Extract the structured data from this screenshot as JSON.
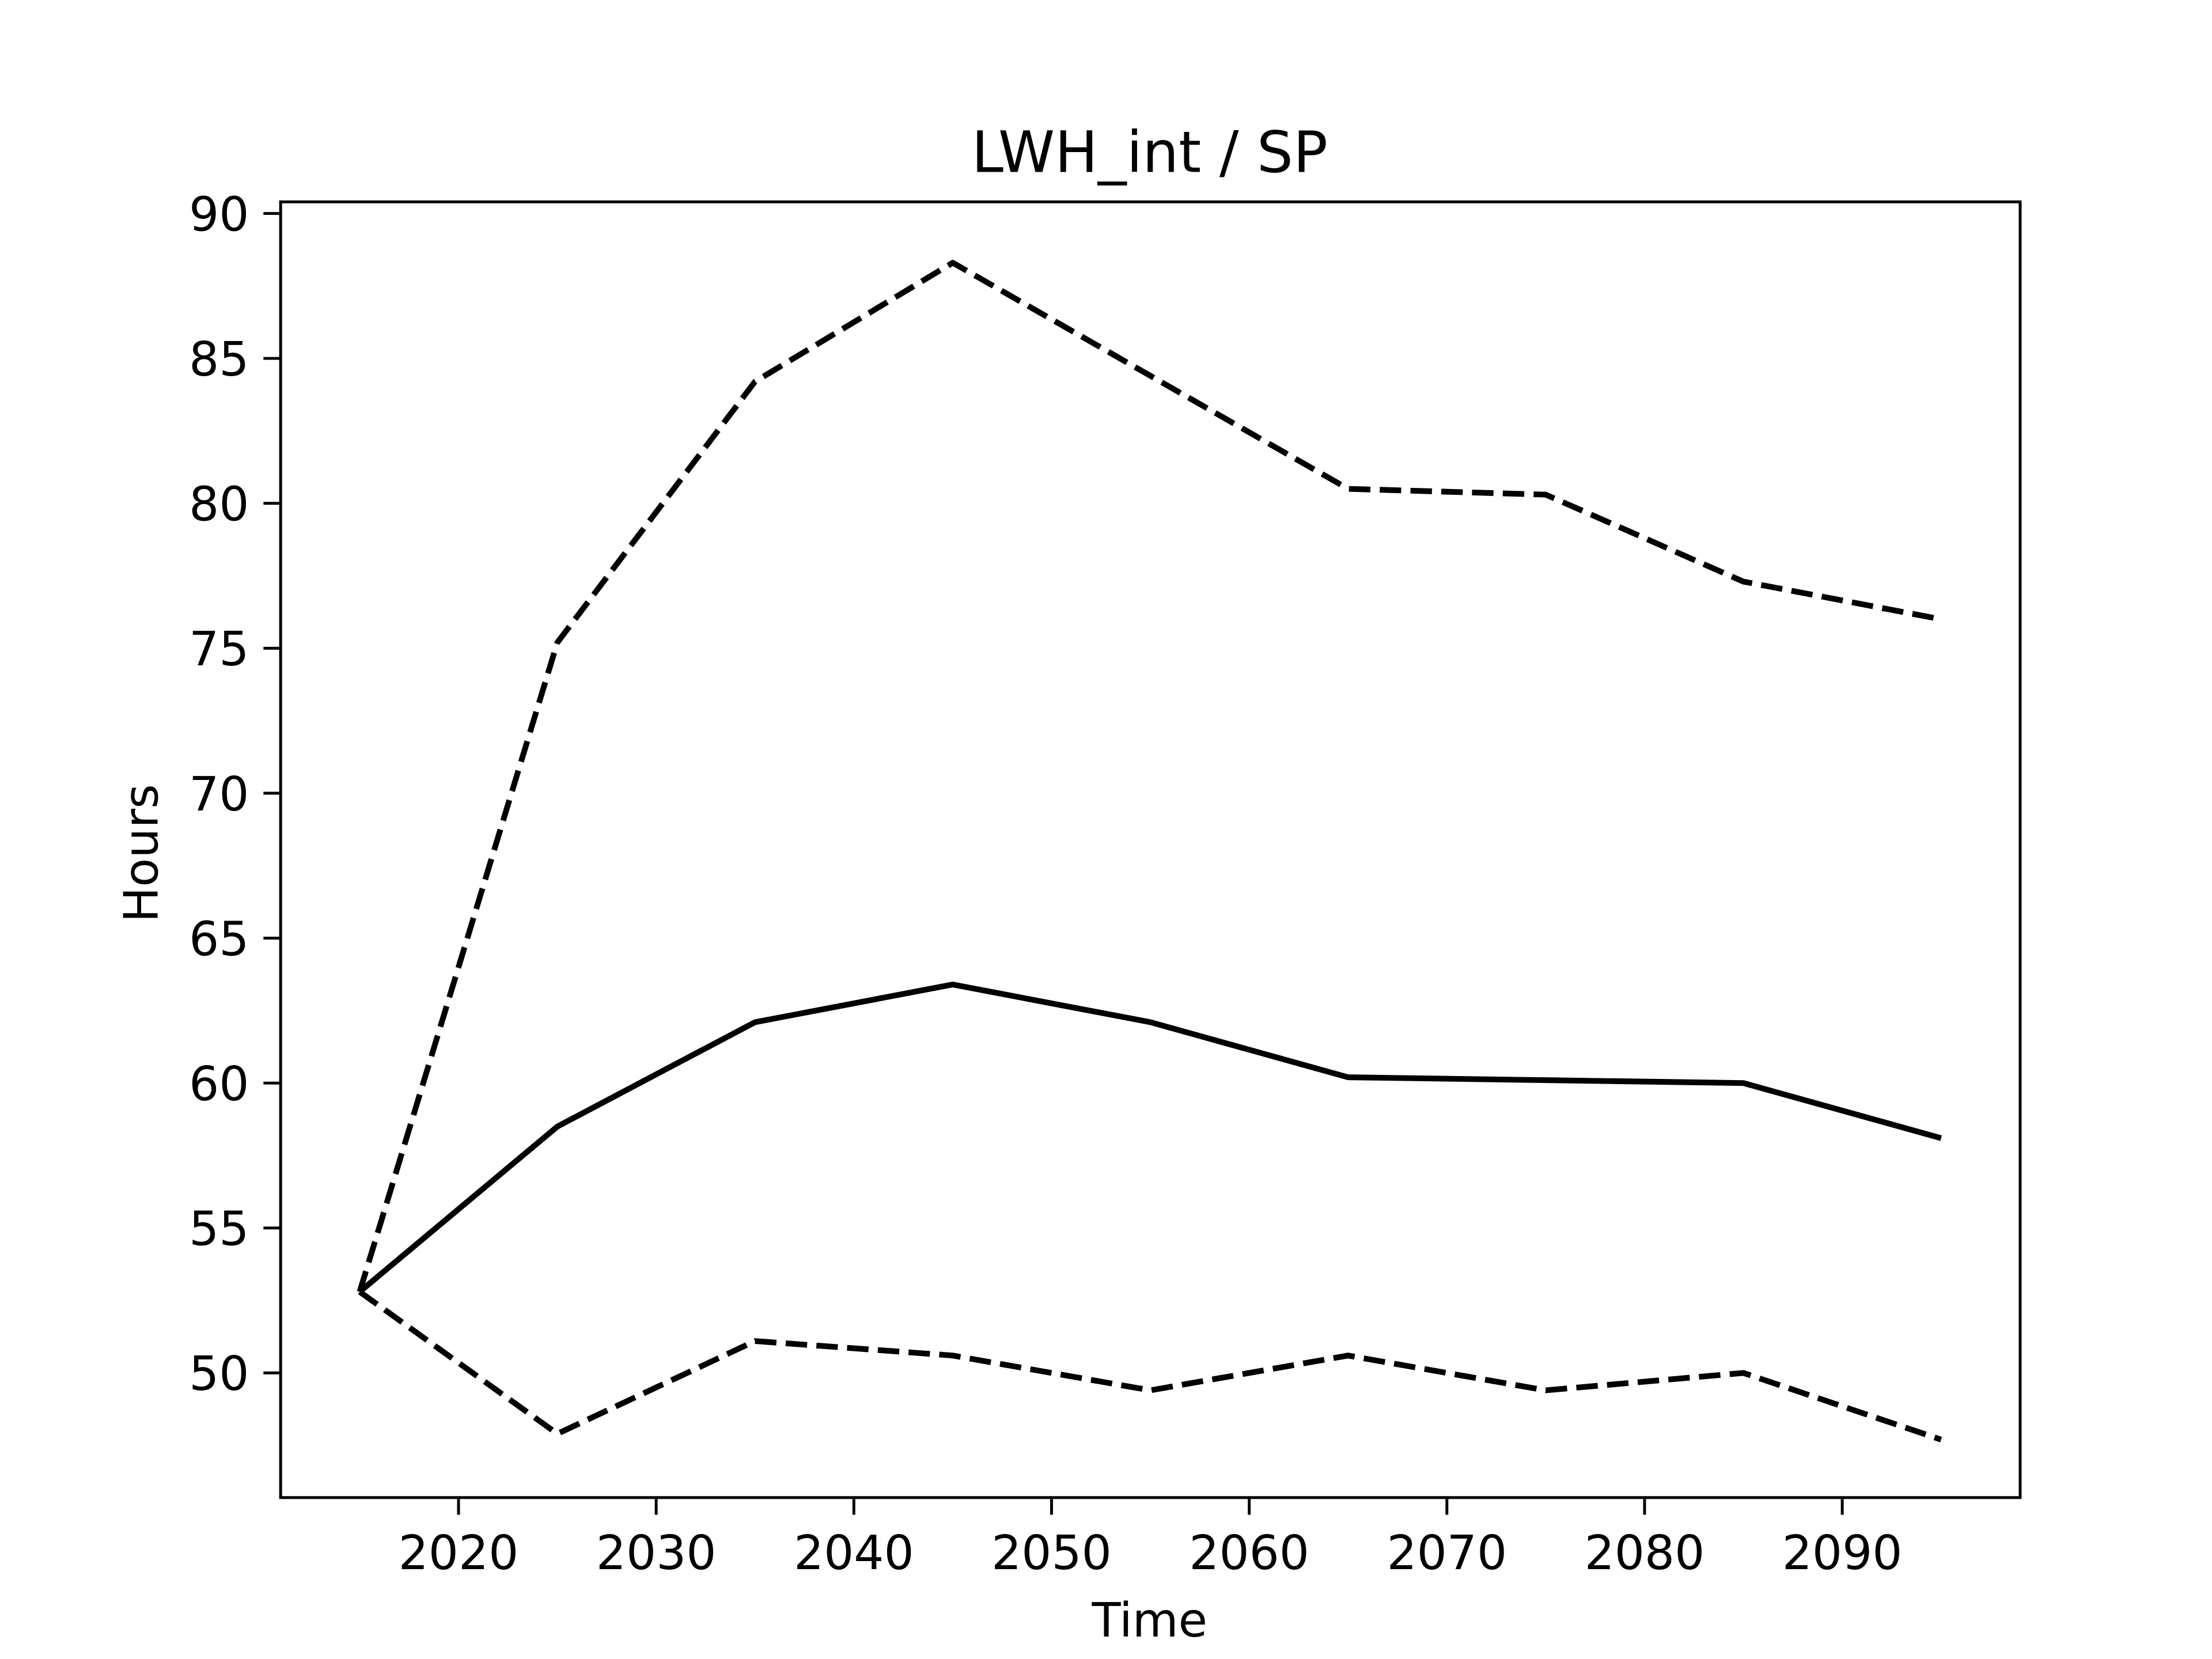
{
  "chart_data": {
    "type": "line",
    "title": "LWH_int / SP",
    "x_label": "Time",
    "y_label": "Hours",
    "x": [
      2015,
      2025,
      2035,
      2045,
      2055,
      2065,
      2075,
      2085,
      2095
    ],
    "series": [
      {
        "color": "#000000",
        "dashed": false,
        "values": [
          52.8,
          58.5,
          62.1,
          63.4,
          62.1,
          60.2,
          60.1,
          60.0,
          58.1
        ]
      },
      {
        "color": "#000000",
        "dashed": true,
        "values": [
          52.8,
          75.2,
          84.2,
          88.3,
          84.4,
          80.5,
          80.3,
          77.3,
          76.0
        ]
      },
      {
        "color": "#000000",
        "dashed": true,
        "values": [
          52.8,
          47.9,
          51.1,
          50.6,
          49.4,
          50.6,
          49.4,
          50.0,
          47.7
        ]
      }
    ],
    "xlim": [
      2011,
      2099
    ],
    "xticks": [
      2020,
      2030,
      2040,
      2050,
      2060,
      2070,
      2080,
      2090
    ],
    "ylim": [
      45.7,
      90.4
    ],
    "yticks": [
      50,
      55,
      60,
      65,
      70,
      75,
      80,
      85,
      90
    ],
    "grid": false
  }
}
